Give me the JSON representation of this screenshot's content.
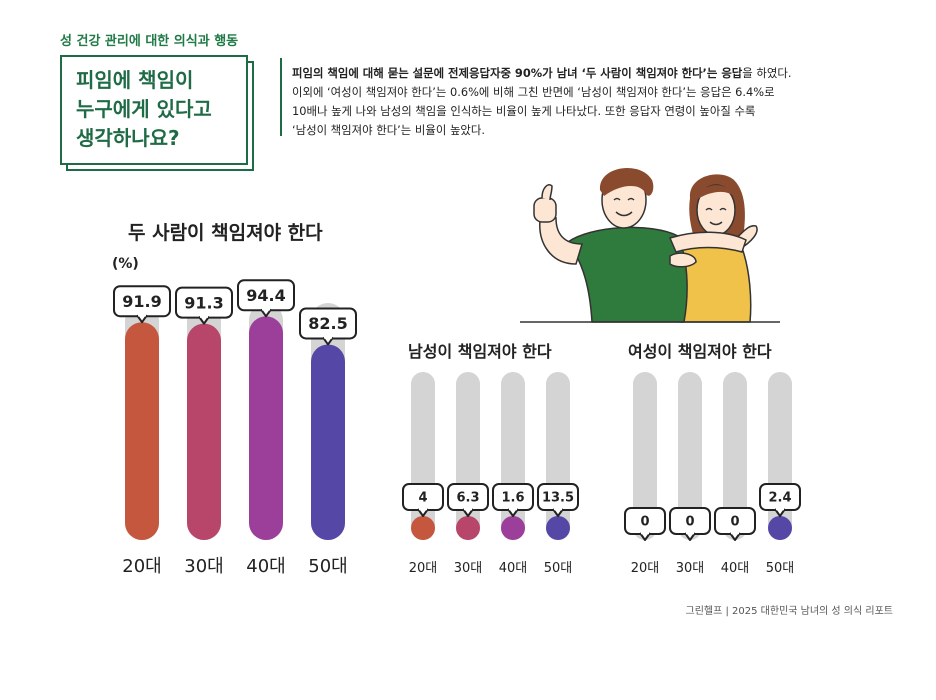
{
  "section_label": "성 건강 관리에 대한 의식과 행동",
  "title_lines": [
    "피임에 책임이",
    "누구에게 있다고",
    "생각하나요?"
  ],
  "description": {
    "line1_bold": "피임의 책임에 대해 묻는 설문에 전제응답자중 90%가 남녀 ‘두 사람이 책임져야 한다’는 응답",
    "line1_rest": "을 하였다.",
    "line2": "이외에 ‘여성이 책임져야 한다’는 0.6%에 비해 그친 반면에 ‘남성이 책임져야 한다’는 응답은 6.4%로",
    "line3": "10배나 높게 나와 남성의 책임을 인식하는 비율이 높게 나타났다. 또한 응답자 연령이 높아질 수록",
    "line4": "‘남성이 책임져야 한다’는 비율이 높았다."
  },
  "source": "그린헬프 | 2025 대한민국 남녀의 성 의식 리포트",
  "colors": {
    "green": "#1f6b45",
    "track": "#d4d4d4",
    "age20": "#c4573e",
    "age30": "#b8456a",
    "age40": "#9b3f9a",
    "age50": "#5547a6",
    "shirt": "#2f7a3d",
    "dress": "#f0c24a"
  },
  "illustration": "couple-hugging-thumbs-up",
  "chart_data": [
    {
      "type": "bar",
      "title": "두 사람이 책임져야 한다",
      "unit_label": "(%)",
      "categories": [
        "20대",
        "30대",
        "40대",
        "50대"
      ],
      "values": [
        91.9,
        91.3,
        94.4,
        82.5
      ],
      "value_labels": [
        "91.9",
        "91.3",
        "94.4",
        "82.5"
      ],
      "ylim": [
        0,
        100
      ],
      "grid": false
    },
    {
      "type": "bar",
      "title": "남성이 책임져야 한다",
      "categories": [
        "20대",
        "30대",
        "40대",
        "50대"
      ],
      "values": [
        4,
        6.3,
        1.6,
        13.5
      ],
      "value_labels": [
        "4",
        "6.3",
        "1.6",
        "13.5"
      ],
      "ylim": [
        0,
        100
      ],
      "grid": false
    },
    {
      "type": "bar",
      "title": "여성이 책임져야 한다",
      "categories": [
        "20대",
        "30대",
        "40대",
        "50대"
      ],
      "values": [
        0,
        0,
        0,
        2.4
      ],
      "value_labels": [
        "0",
        "0",
        "0",
        "2.4"
      ],
      "ylim": [
        0,
        100
      ],
      "grid": false
    }
  ]
}
